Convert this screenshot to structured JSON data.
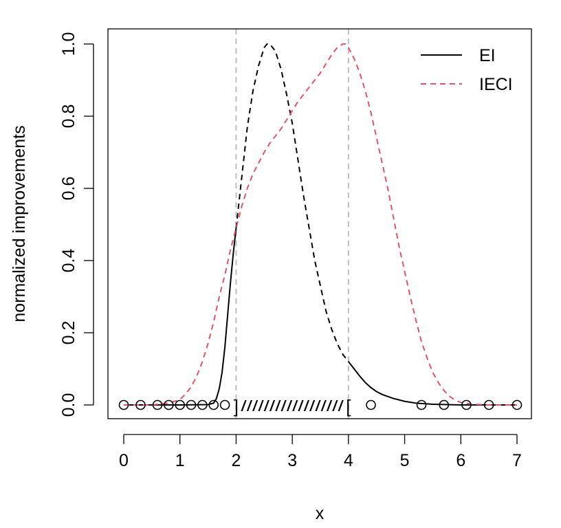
{
  "chart_data": {
    "type": "line",
    "xlabel": "x",
    "ylabel": "normalized improvements",
    "xlim": [
      0,
      7
    ],
    "ylim": [
      0,
      1
    ],
    "x_ticks": [
      "0",
      "1",
      "2",
      "3",
      "4",
      "5",
      "6",
      "7"
    ],
    "y_ticks": [
      "0.0",
      "0.2",
      "0.4",
      "0.6",
      "0.8",
      "1.0"
    ],
    "grid": false,
    "legend": {
      "position": "top-right",
      "entries": [
        "EI",
        "IECI"
      ]
    },
    "series": [
      {
        "name": "EI",
        "color": "#000000",
        "x": [
          0,
          1.0,
          1.5,
          1.6,
          1.65,
          1.7,
          1.75,
          1.8,
          1.85,
          1.9,
          1.95,
          2.0,
          2.05,
          2.1,
          2.15,
          2.2,
          2.3,
          2.4,
          2.5,
          2.55,
          2.6,
          2.7,
          2.8,
          2.9,
          3.0,
          3.1,
          3.2,
          3.3,
          3.4,
          3.5,
          3.6,
          3.7,
          3.8,
          3.9,
          4.0,
          4.1,
          4.2,
          4.3,
          4.4,
          4.5,
          4.6,
          4.8,
          5.0,
          5.2,
          5.5,
          6.0,
          6.5,
          7.0
        ],
        "values": [
          0,
          0,
          0.001,
          0.005,
          0.018,
          0.045,
          0.09,
          0.16,
          0.25,
          0.34,
          0.42,
          0.49,
          0.56,
          0.63,
          0.7,
          0.77,
          0.87,
          0.94,
          0.99,
          1.0,
          1.0,
          0.98,
          0.93,
          0.86,
          0.78,
          0.68,
          0.58,
          0.49,
          0.4,
          0.33,
          0.26,
          0.21,
          0.17,
          0.14,
          0.12,
          0.1,
          0.08,
          0.062,
          0.048,
          0.037,
          0.029,
          0.018,
          0.01,
          0.005,
          0.002,
          0,
          0,
          0
        ],
        "dashed_x_range": [
          2,
          4
        ]
      },
      {
        "name": "IECI",
        "color": "#DF536B",
        "x": [
          0,
          0.5,
          0.8,
          1.0,
          1.1,
          1.2,
          1.3,
          1.4,
          1.5,
          1.6,
          1.7,
          1.8,
          1.9,
          2.0,
          2.1,
          2.2,
          2.3,
          2.4,
          2.5,
          2.6,
          2.7,
          2.8,
          2.9,
          3.0,
          3.1,
          3.2,
          3.3,
          3.4,
          3.5,
          3.6,
          3.7,
          3.8,
          3.9,
          3.95,
          4.0,
          4.05,
          4.1,
          4.2,
          4.3,
          4.4,
          4.5,
          4.6,
          4.7,
          4.8,
          4.9,
          5.0,
          5.1,
          5.2,
          5.3,
          5.4,
          5.5,
          5.6,
          5.7,
          5.8,
          5.9,
          6.0,
          6.2,
          6.5,
          7.0
        ],
        "values": [
          0,
          0,
          0.005,
          0.015,
          0.03,
          0.05,
          0.08,
          0.12,
          0.17,
          0.23,
          0.3,
          0.36,
          0.43,
          0.49,
          0.55,
          0.6,
          0.64,
          0.67,
          0.7,
          0.725,
          0.745,
          0.765,
          0.79,
          0.815,
          0.84,
          0.86,
          0.88,
          0.9,
          0.92,
          0.945,
          0.97,
          0.99,
          1.0,
          1.0,
          0.99,
          0.975,
          0.96,
          0.92,
          0.87,
          0.81,
          0.74,
          0.67,
          0.6,
          0.52,
          0.44,
          0.37,
          0.3,
          0.235,
          0.175,
          0.13,
          0.09,
          0.062,
          0.04,
          0.024,
          0.013,
          0.007,
          0.002,
          0,
          0
        ]
      }
    ],
    "points": {
      "x": [
        0,
        0.3,
        0.6,
        0.8,
        1.0,
        1.2,
        1.4,
        1.6,
        1.8,
        4.4,
        5.3,
        5.7,
        6.1,
        6.5,
        7.0
      ],
      "y": [
        0,
        0,
        0,
        0,
        0,
        0,
        0,
        0,
        0,
        0,
        0,
        0,
        0,
        0,
        0
      ]
    },
    "vertical_lines": [
      2,
      4
    ],
    "interval": {
      "from": 2,
      "to": 4,
      "left_bracket": "]",
      "right_bracket": "[",
      "fill": "//////////////////"
    }
  }
}
